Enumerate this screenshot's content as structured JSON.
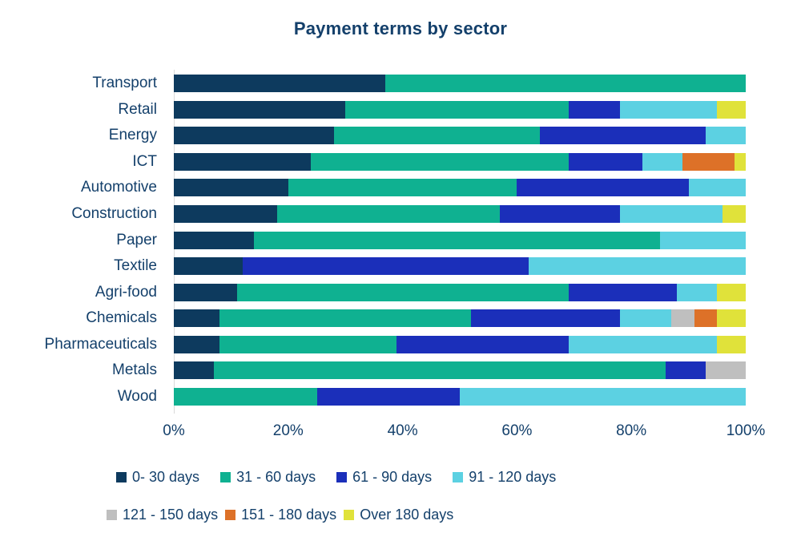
{
  "title": "Payment terms by sector",
  "colors": {
    "text": "#14406b",
    "axis_line": "#d9d9d9",
    "background": "#ffffff"
  },
  "chart_data": {
    "type": "bar",
    "orientation": "horizontal",
    "stacked": true,
    "title": "Payment terms by sector",
    "xlabel": "",
    "ylabel": "",
    "xlim": [
      0,
      100
    ],
    "grid": false,
    "legend_position": "bottom",
    "x_ticks": [
      "0%",
      "20%",
      "40%",
      "60%",
      "80%",
      "100%"
    ],
    "categories": [
      "Transport",
      "Retail",
      "Energy",
      "ICT",
      "Automotive",
      "Construction",
      "Paper",
      "Textile",
      "Agri-food",
      "Chemicals",
      "Pharmaceuticals",
      "Metals",
      "Wood"
    ],
    "series": [
      {
        "name": "0- 30 days",
        "color": "#0d3a5e",
        "values": [
          37,
          30,
          28,
          24,
          20,
          18,
          14,
          12,
          11,
          8,
          8,
          7,
          0
        ]
      },
      {
        "name": "31 - 60 days",
        "color": "#0fb191",
        "values": [
          63,
          39,
          36,
          45,
          40,
          39,
          71,
          0,
          58,
          44,
          31,
          79,
          25
        ]
      },
      {
        "name": "61 - 90 days",
        "color": "#1b2fba",
        "values": [
          0,
          9,
          29,
          13,
          30,
          21,
          0,
          50,
          19,
          26,
          30,
          7,
          25
        ]
      },
      {
        "name": "91 - 120 days",
        "color": "#5cd1e2",
        "values": [
          0,
          17,
          7,
          7,
          10,
          18,
          15,
          38,
          7,
          9,
          26,
          0,
          50
        ]
      },
      {
        "name": "121 - 150 days",
        "color": "#bfbfbf",
        "values": [
          0,
          0,
          0,
          0,
          0,
          0,
          0,
          0,
          0,
          4,
          0,
          7,
          0
        ]
      },
      {
        "name": "151 - 180 days",
        "color": "#dd7128",
        "values": [
          0,
          0,
          0,
          9,
          0,
          0,
          0,
          0,
          0,
          4,
          0,
          0,
          0
        ]
      },
      {
        "name": "Over 180 days",
        "color": "#e0e23a",
        "values": [
          0,
          5,
          0,
          2,
          0,
          4,
          0,
          0,
          5,
          5,
          5,
          0,
          0
        ]
      }
    ]
  }
}
